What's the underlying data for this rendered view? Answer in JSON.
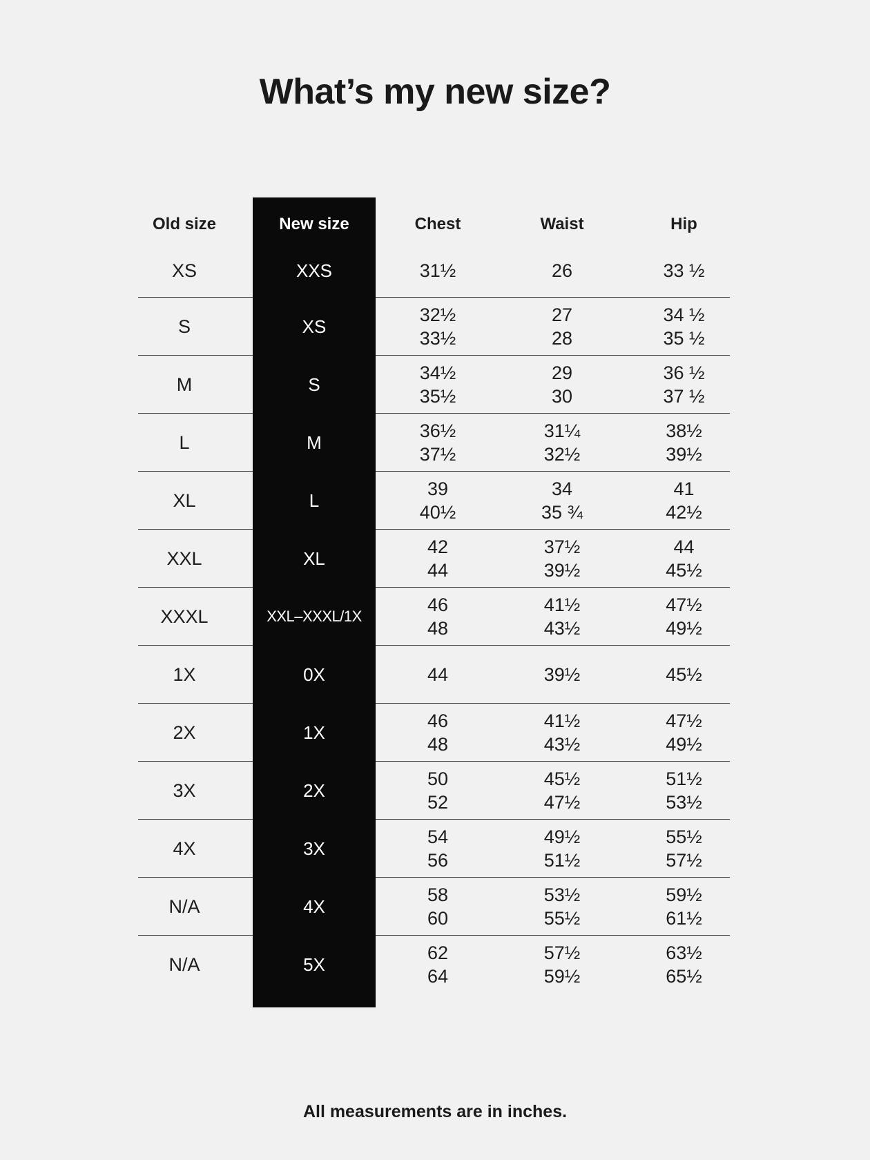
{
  "page": {
    "title": "What’s my new size?",
    "footer": "All measurements are in inches."
  },
  "colors": {
    "background": "#f1f1f2",
    "text": "#1a1a1a",
    "highlight_column_bg": "#0a0a0a",
    "highlight_column_text": "#ffffff",
    "rule": "#2e2e2e"
  },
  "table": {
    "headers": {
      "old": "Old size",
      "new": "New size",
      "chest": "Chest",
      "waist": "Waist",
      "hip": "Hip"
    },
    "rows": [
      {
        "old": "XS",
        "new": "XXS",
        "chest": [
          "31½"
        ],
        "waist": [
          "26"
        ],
        "hip": [
          "33 ½"
        ]
      },
      {
        "old": "S",
        "new": "XS",
        "chest": [
          "32½",
          "33½"
        ],
        "waist": [
          "27",
          "28"
        ],
        "hip": [
          "34 ½",
          "35 ½"
        ]
      },
      {
        "old": "M",
        "new": "S",
        "chest": [
          "34½",
          "35½"
        ],
        "waist": [
          "29",
          "30"
        ],
        "hip": [
          "36 ½",
          "37 ½"
        ]
      },
      {
        "old": "L",
        "new": "M",
        "chest": [
          "36½",
          "37½"
        ],
        "waist": [
          "31¼",
          "32½"
        ],
        "hip": [
          "38½",
          "39½"
        ]
      },
      {
        "old": "XL",
        "new": "L",
        "chest": [
          "39",
          "40½"
        ],
        "waist": [
          "34",
          "35 ¾"
        ],
        "hip": [
          "41",
          "42½"
        ]
      },
      {
        "old": "XXL",
        "new": "XL",
        "chest": [
          "42",
          "44"
        ],
        "waist": [
          "37½",
          "39½"
        ],
        "hip": [
          "44",
          "45½"
        ]
      },
      {
        "old": "XXXL",
        "new": "XXL–XXXL/1X",
        "chest": [
          "46",
          "48"
        ],
        "waist": [
          "41½",
          "43½"
        ],
        "hip": [
          "47½",
          "49½"
        ]
      },
      {
        "old": "1X",
        "new": "0X",
        "chest": [
          "44"
        ],
        "waist": [
          "39½"
        ],
        "hip": [
          "45½"
        ]
      },
      {
        "old": "2X",
        "new": "1X",
        "chest": [
          "46",
          "48"
        ],
        "waist": [
          "41½",
          "43½"
        ],
        "hip": [
          "47½",
          "49½"
        ]
      },
      {
        "old": "3X",
        "new": "2X",
        "chest": [
          "50",
          "52"
        ],
        "waist": [
          "45½",
          "47½"
        ],
        "hip": [
          "51½",
          "53½"
        ]
      },
      {
        "old": "4X",
        "new": "3X",
        "chest": [
          "54",
          "56"
        ],
        "waist": [
          "49½",
          "51½"
        ],
        "hip": [
          "55½",
          "57½"
        ]
      },
      {
        "old": "N/A",
        "new": "4X",
        "chest": [
          "58",
          "60"
        ],
        "waist": [
          "53½",
          "55½"
        ],
        "hip": [
          "59½",
          "61½"
        ]
      },
      {
        "old": "N/A",
        "new": "5X",
        "chest": [
          "62",
          "64"
        ],
        "waist": [
          "57½",
          "59½"
        ],
        "hip": [
          "63½",
          "65½"
        ]
      }
    ]
  }
}
